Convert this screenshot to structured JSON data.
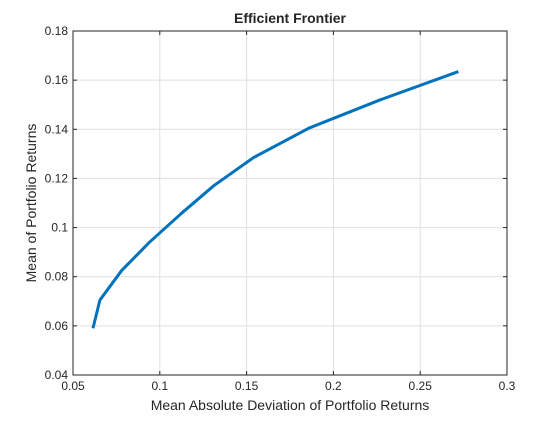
{
  "chart_data": {
    "type": "line",
    "title": "Efficient  Frontier",
    "xlabel": "Mean Absolute Deviation of Portfolio Returns",
    "ylabel": "Mean of Portfolio Returns",
    "xlim": [
      0.05,
      0.3
    ],
    "ylim": [
      0.04,
      0.18
    ],
    "xticks": [
      "0.05",
      "0.1",
      "0.15",
      "0.2",
      "0.25",
      "0.3"
    ],
    "yticks": [
      "0.04",
      "0.06",
      "0.08",
      "0.1",
      "0.12",
      "0.14",
      "0.16",
      "0.18"
    ],
    "grid": true,
    "series": [
      {
        "color": "#0072BD",
        "x": [
          0.0615,
          0.0655,
          0.078,
          0.094,
          0.112,
          0.131,
          0.154,
          0.186,
          0.227,
          0.272
        ],
        "y": [
          0.059,
          0.0705,
          0.0825,
          0.094,
          0.1055,
          0.117,
          0.1285,
          0.1405,
          0.152,
          0.1635
        ]
      }
    ]
  }
}
